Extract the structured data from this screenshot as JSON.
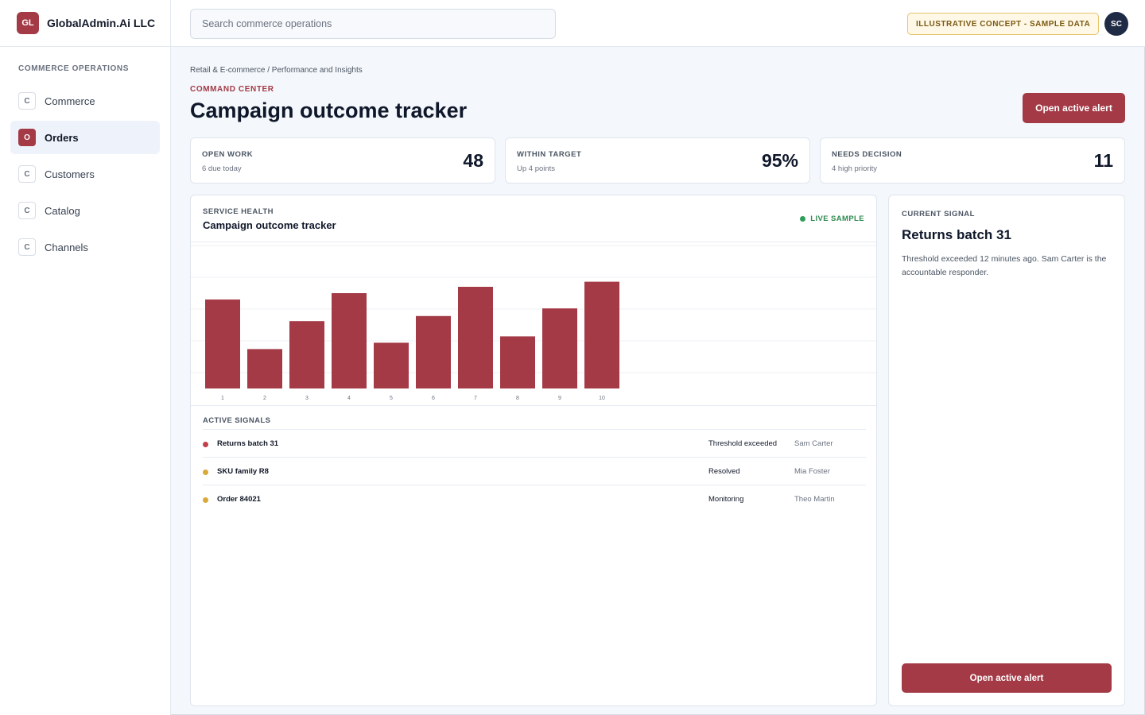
{
  "brand": {
    "logo": "GL",
    "name": "GlobalAdmin.Ai LLC"
  },
  "search": {
    "placeholder": "Search commerce operations"
  },
  "badge": "ILLUSTRATIVE CONCEPT - SAMPLE DATA",
  "user": {
    "initials": "SC"
  },
  "sidebar": {
    "heading": "COMMERCE OPERATIONS",
    "items": [
      {
        "badge": "C",
        "label": "Commerce",
        "active": false
      },
      {
        "badge": "O",
        "label": "Orders",
        "active": true
      },
      {
        "badge": "C",
        "label": "Customers",
        "active": false
      },
      {
        "badge": "C",
        "label": "Catalog",
        "active": false
      },
      {
        "badge": "C",
        "label": "Channels",
        "active": false
      }
    ]
  },
  "header": {
    "breadcrumb": "Retail & E-commerce / Performance and Insights",
    "eyebrow": "COMMAND CENTER",
    "title": "Campaign outcome tracker",
    "action": "Open active alert"
  },
  "kpis": [
    {
      "label": "OPEN WORK",
      "sub": "6 due today",
      "value": "48"
    },
    {
      "label": "WITHIN TARGET",
      "sub": "Up 4 points",
      "value": "95%"
    },
    {
      "label": "NEEDS DECISION",
      "sub": "4 high priority",
      "value": "11"
    }
  ],
  "panel": {
    "eyebrow": "SERVICE HEALTH",
    "title": "Campaign outcome tracker",
    "live": "LIVE SAMPLE",
    "signals_heading": "ACTIVE SIGNALS",
    "signals": [
      {
        "name": "Returns batch 31",
        "status": "Threshold exceeded",
        "owner": "Sam Carter",
        "color": "#c2404c"
      },
      {
        "name": "SKU family R8",
        "status": "Resolved",
        "owner": "Mia Foster",
        "color": "#d9a93a"
      },
      {
        "name": "Order 84021",
        "status": "Monitoring",
        "owner": "Theo Martin",
        "color": "#d9a93a"
      }
    ]
  },
  "chart_data": {
    "type": "bar",
    "categories": [
      "1",
      "2",
      "3",
      "4",
      "5",
      "6",
      "7",
      "8",
      "9",
      "10"
    ],
    "values": [
      70,
      31,
      53,
      75,
      36,
      57,
      80,
      41,
      63,
      84
    ],
    "ylim": [
      0,
      100
    ],
    "grid": true,
    "color": "#a33a46"
  },
  "side": {
    "eyebrow": "CURRENT SIGNAL",
    "title": "Returns batch 31",
    "text": "Threshold exceeded 12 minutes ago. Sam Carter is the accountable responder.",
    "action": "Open active alert"
  },
  "colors": {
    "accent": "#a33a46",
    "live": "#2f9e5a",
    "warning": "#d9a93a"
  }
}
